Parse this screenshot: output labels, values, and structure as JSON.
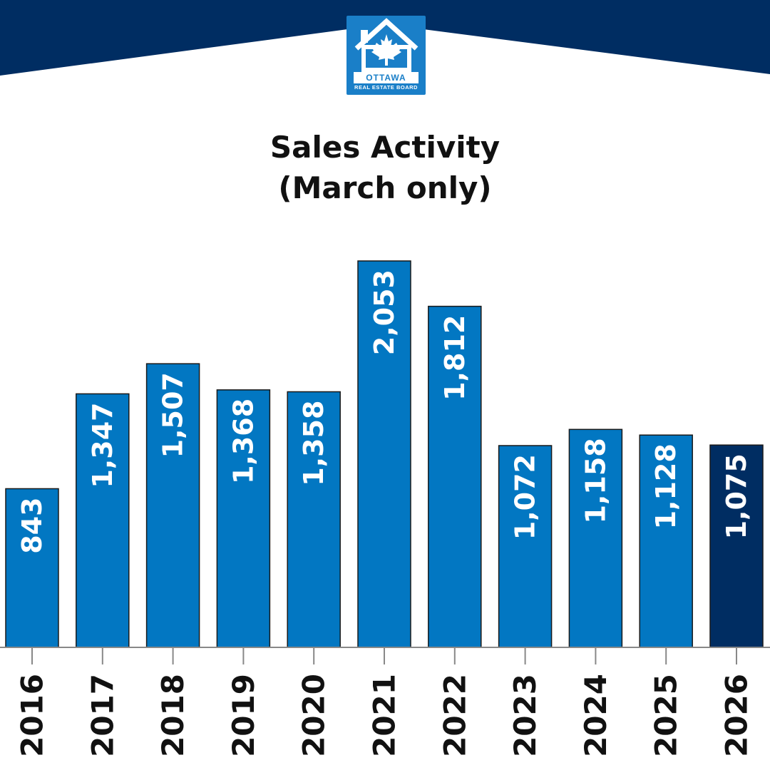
{
  "brand": {
    "logo_name": "OTTAWA",
    "logo_sub": "REAL ESTATE BOARD",
    "colors": {
      "header": "#002d62",
      "logo": "#1a7fc8"
    }
  },
  "chart_data": {
    "type": "bar",
    "title": "Sales Activity",
    "subtitle": "(March only)",
    "categories": [
      "2016",
      "2017",
      "2018",
      "2019",
      "2020",
      "2021",
      "2022",
      "2023",
      "2024",
      "2025",
      "2026"
    ],
    "values": [
      843,
      1347,
      1507,
      1368,
      1358,
      2053,
      1812,
      1072,
      1158,
      1128,
      1075
    ],
    "value_labels": [
      "843",
      "1,347",
      "1,507",
      "1,368",
      "1,358",
      "2,053",
      "1,812",
      "1,072",
      "1,158",
      "1,128",
      "1,075"
    ],
    "highlight_index": 10,
    "colors": {
      "bar": "#0277c2",
      "highlight": "#002d62",
      "label": "#ffffff",
      "axis": "#888888"
    },
    "ylim": [
      0,
      2053
    ],
    "grid": false,
    "legend": "none"
  }
}
